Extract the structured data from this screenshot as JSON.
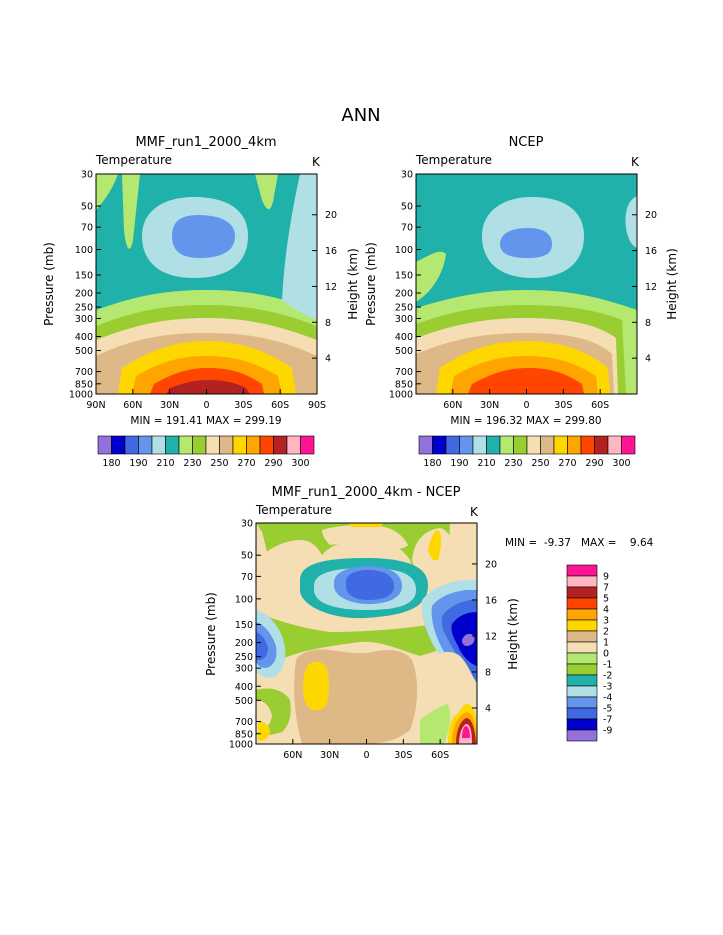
{
  "page_title": "ANN",
  "colors": {
    "abs_scale": [
      "#9370db",
      "#0000cd",
      "#4169e1",
      "#6495ed",
      "#b0e0e6",
      "#20b2aa",
      "#b4e870",
      "#9acd32",
      "#f5deb3",
      "#deb887",
      "#ffd700",
      "#ffa500",
      "#ff4500",
      "#b22222",
      "#ffb6c1",
      "#ff1493"
    ],
    "diff_scale": [
      "#9370db",
      "#0000cd",
      "#4169e1",
      "#6495ed",
      "#b0e0e6",
      "#20b2aa",
      "#9acd32",
      "#b4e870",
      "#f5deb3",
      "#deb887",
      "#ffd700",
      "#ffa500",
      "#ff4500",
      "#b22222",
      "#ffb6c1",
      "#ff1493"
    ]
  },
  "chart_data": [
    {
      "type": "heatmap",
      "title": "MMF_run1_2000_4km",
      "subtitle": "Temperature",
      "units": "K",
      "ylabel": "Pressure (mb)",
      "ylabel_right": "Height (km)",
      "x_ticks": [
        "90N",
        "60N",
        "30N",
        "0",
        "30S",
        "60S",
        "90S"
      ],
      "y_ticks": [
        "30",
        "50",
        "70",
        "100",
        "150",
        "200",
        "250",
        "300",
        "400",
        "500",
        "700",
        "850",
        "1000"
      ],
      "height_ticks": [
        "20",
        "16",
        "12",
        "8",
        "4"
      ],
      "stats": "MIN = 191.41   MAX = 299.19",
      "colorbar_labels": [
        "180",
        "190",
        "210",
        "230",
        "250",
        "270",
        "290",
        "300"
      ]
    },
    {
      "type": "heatmap",
      "title": "NCEP",
      "subtitle": "Temperature",
      "units": "K",
      "ylabel": "Pressure (mb)",
      "ylabel_right": "Height (km)",
      "x_ticks": [
        "60N",
        "30N",
        "0",
        "30S",
        "60S"
      ],
      "y_ticks": [
        "30",
        "50",
        "70",
        "100",
        "150",
        "200",
        "250",
        "300",
        "400",
        "500",
        "700",
        "850",
        "1000"
      ],
      "height_ticks": [
        "20",
        "16",
        "12",
        "8",
        "4"
      ],
      "stats": "MIN = 196.32   MAX = 299.80",
      "colorbar_labels": [
        "180",
        "190",
        "210",
        "230",
        "250",
        "270",
        "290",
        "300"
      ]
    },
    {
      "type": "heatmap",
      "title": "MMF_run1_2000_4km - NCEP",
      "subtitle": "Temperature",
      "units": "K",
      "ylabel": "Pressure (mb)",
      "ylabel_right": "Height (km)",
      "x_ticks": [
        "60N",
        "30N",
        "0",
        "30S",
        "60S"
      ],
      "y_ticks": [
        "30",
        "50",
        "70",
        "100",
        "150",
        "200",
        "250",
        "300",
        "400",
        "500",
        "700",
        "850",
        "1000"
      ],
      "height_ticks": [
        "20",
        "16",
        "12",
        "8",
        "4"
      ],
      "stats": "MIN =  -9.37   MAX =    9.64",
      "legend_labels": [
        "9",
        "7",
        "5",
        "4",
        "3",
        "2",
        "1",
        "0",
        "-1",
        "-2",
        "-3",
        "-4",
        "-5",
        "-7",
        "-9"
      ]
    }
  ]
}
